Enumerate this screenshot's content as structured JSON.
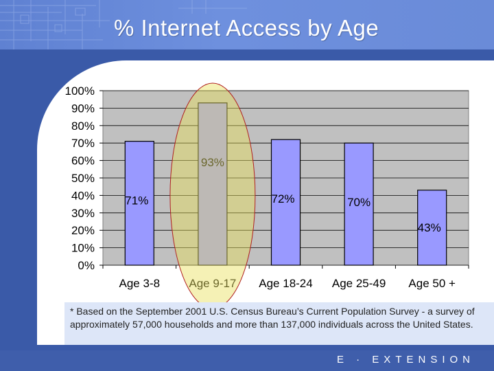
{
  "header": {
    "title": "% Internet Access by Age"
  },
  "footer": {
    "brand": "E · EXTENSION"
  },
  "note": {
    "text": "* Based on the September 2001 U.S. Census Bureau’s Current Population Survey - a survey of approximately 57,000 households and more than 137,000 individuals across the United States."
  },
  "colors": {
    "bar": "#9999ff",
    "plot_bg": "#c0c0c0",
    "highlight": "#e8e05a",
    "accent": "#5f81d2"
  },
  "chart_data": {
    "type": "bar",
    "title": "% Internet Access by Age",
    "xlabel": "",
    "ylabel": "",
    "categories": [
      "Age 3-8",
      "Age 9-17",
      "Age 18-24",
      "Age 25-49",
      "Age 50 +"
    ],
    "values": [
      71,
      93,
      72,
      70,
      43
    ],
    "value_labels": [
      "71%",
      "93%",
      "72%",
      "70%",
      "43%"
    ],
    "ylim": [
      0,
      100
    ],
    "yticks": [
      "0%",
      "10%",
      "20%",
      "30%",
      "40%",
      "50%",
      "60%",
      "70%",
      "80%",
      "90%",
      "100%"
    ],
    "grid": true,
    "highlighted_category": "Age 9-17"
  }
}
